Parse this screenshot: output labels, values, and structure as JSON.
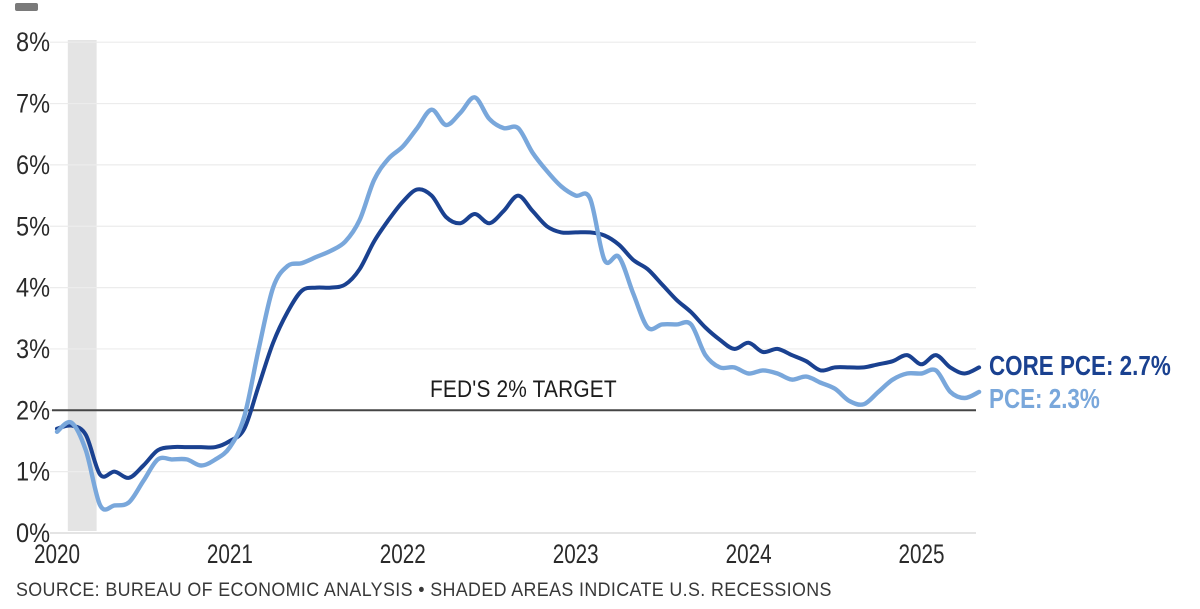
{
  "chart_data": {
    "type": "line",
    "title": "",
    "description": "U.S. PCE and Core PCE year-over-year inflation, monthly, Jan 2020 to May 2025",
    "frequency": "monthly",
    "x_start": "2020-01",
    "x_end": "2025-05",
    "x_ticks": [
      "2020",
      "2021",
      "2022",
      "2023",
      "2024",
      "2025"
    ],
    "y_ticks": [
      "0%",
      "1%",
      "2%",
      "3%",
      "4%",
      "5%",
      "6%",
      "7%",
      "8%"
    ],
    "ylim": [
      0,
      8
    ],
    "grid": "horizontal",
    "legend_position": "right-of-line-ends",
    "target_line": {
      "value": 2,
      "label": "FED'S 2% TARGET",
      "color": "#454545"
    },
    "recession_band": {
      "from": "2020-02",
      "to": "2020-04",
      "color": "#e4e4e4"
    },
    "series": [
      {
        "name": "CORE PCE",
        "latest_label": "CORE PCE: 2.7%",
        "latest_value": 2.7,
        "color": "#1a4190",
        "values": [
          1.7,
          1.75,
          1.6,
          0.95,
          1.0,
          0.9,
          1.1,
          1.35,
          1.4,
          1.4,
          1.4,
          1.4,
          1.5,
          1.7,
          2.4,
          3.1,
          3.6,
          3.95,
          4.0,
          4.0,
          4.05,
          4.3,
          4.75,
          5.1,
          5.4,
          5.6,
          5.5,
          5.15,
          5.05,
          5.2,
          5.05,
          5.25,
          5.5,
          5.25,
          5.0,
          4.9,
          4.9,
          4.9,
          4.85,
          4.7,
          4.45,
          4.3,
          4.05,
          3.8,
          3.6,
          3.35,
          3.15,
          3.0,
          3.1,
          2.95,
          3.0,
          2.9,
          2.8,
          2.65,
          2.7,
          2.7,
          2.7,
          2.75,
          2.8,
          2.9,
          2.75,
          2.9,
          2.7,
          2.6,
          2.7
        ]
      },
      {
        "name": "PCE",
        "latest_label": "PCE: 2.3%",
        "latest_value": 2.3,
        "color": "#79a7db",
        "values": [
          1.65,
          1.8,
          1.35,
          0.45,
          0.45,
          0.5,
          0.85,
          1.2,
          1.2,
          1.2,
          1.1,
          1.2,
          1.4,
          1.9,
          3.0,
          4.0,
          4.35,
          4.4,
          4.5,
          4.6,
          4.75,
          5.1,
          5.75,
          6.1,
          6.3,
          6.6,
          6.9,
          6.65,
          6.85,
          7.1,
          6.75,
          6.6,
          6.6,
          6.2,
          5.9,
          5.65,
          5.5,
          5.45,
          4.45,
          4.5,
          3.9,
          3.35,
          3.4,
          3.4,
          3.4,
          2.9,
          2.7,
          2.7,
          2.6,
          2.65,
          2.6,
          2.5,
          2.55,
          2.45,
          2.35,
          2.15,
          2.1,
          2.3,
          2.5,
          2.6,
          2.6,
          2.65,
          2.3,
          2.2,
          2.3
        ]
      }
    ]
  },
  "annotations": {
    "target_label": "FED'S 2% TARGET"
  },
  "source_line": "SOURCE: BUREAU OF ECONOMIC ANALYSIS • SHADED AREAS INDICATE U.S. RECESSIONS",
  "colors": {
    "core_pce": "#1a4190",
    "pce": "#79a7db",
    "gridline": "#ececec",
    "zero_line": "#dcdcdc",
    "target_line": "#454545",
    "axis_text": "#2a2a2a",
    "recession_band": "#e4e4e4",
    "background": "#ffffff"
  }
}
